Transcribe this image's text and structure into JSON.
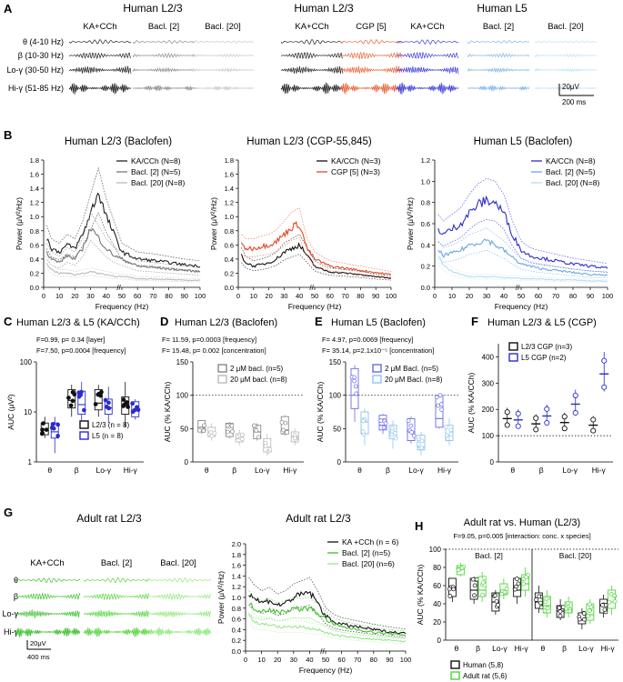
{
  "panels": {
    "A": "A",
    "B": "B",
    "C": "C",
    "D": "D",
    "E": "E",
    "F": "F",
    "G": "G",
    "H": "H"
  },
  "panel_a": {
    "groups": [
      {
        "title": "Human L2/3",
        "conditions": [
          "KA+CCh",
          "Bacl. [2]",
          "Bacl. [20]"
        ],
        "colors": [
          "#222222",
          "#8a8a8a",
          "#c8c8c8"
        ]
      },
      {
        "title": "Human L2/3",
        "conditions": [
          "KA+CCh",
          "CGP [5]"
        ],
        "colors": [
          "#222222",
          "#e8623a"
        ]
      },
      {
        "title": "Human L5",
        "conditions": [
          "KA+CCh",
          "Bacl. [2]",
          "Bacl. [20]"
        ],
        "colors": [
          "#3b3bd9",
          "#7fb4e8",
          "#bfe2f3"
        ]
      }
    ],
    "bands": [
      "θ (4-10 Hz)",
      "β (10-30 Hz)",
      "Lo-γ (30-50 Hz)",
      "Hi-γ (51-85 Hz)"
    ],
    "scale_v": "20μV",
    "scale_t": "200 ms"
  },
  "panel_b": {
    "xlabel": "Frequency (Hz)",
    "ylabel": "Power (μV²/Hz)",
    "charts": [
      {
        "title": "Human L2/3 (Baclofen)",
        "legend": [
          "KA/CCh (N=8)",
          "Bacl. [2]   (N=5)",
          "Bacl. [20]  (N=8)"
        ],
        "yticks": [
          "0.0",
          "0.2",
          "0.4",
          "0.6",
          "0.8",
          "1.0",
          "1.2",
          "1.4",
          "1.6",
          "1.8"
        ],
        "xticks": [
          "0",
          "10",
          "20",
          "30",
          "40",
          "50",
          "60",
          "70",
          "80",
          "90",
          "100"
        ]
      },
      {
        "title": "Human L2/3 (CGP-55,845)",
        "legend": [
          "KA/CCh (N=3)",
          "CGP [5] (N=3)"
        ],
        "yticks": [
          "0.0",
          "0.2",
          "0.4",
          "0.6",
          "0.8",
          "1.0",
          "1.2",
          "1.4",
          "1.6",
          "1.8"
        ],
        "xticks": [
          "0",
          "10",
          "20",
          "30",
          "40",
          "50",
          "60",
          "70",
          "80",
          "90",
          "100"
        ]
      },
      {
        "title": "Human L5 (Baclofen)",
        "legend": [
          "KA/CCh (N=8)",
          "Bacl. [2]   (N=5)",
          "Bacl. [20]  (N=8)"
        ],
        "yticks": [
          "0.0",
          "0.2",
          "0.4",
          "0.6",
          "0.8",
          "1.0",
          "1.2"
        ],
        "xticks": [
          "0",
          "10",
          "20",
          "30",
          "40",
          "50",
          "60",
          "70",
          "80",
          "90",
          "100"
        ]
      }
    ]
  },
  "panel_c": {
    "title": "Human L2/3 & L5 (KA/CCh)",
    "stat1": "F=0.99, p= 0.34 [layer]",
    "stat2": "F=7.50, p=0.0004 [frequency]",
    "ylabel": "AUC (μV²)",
    "yticks": [
      "1",
      "10",
      "100"
    ],
    "categories": [
      "θ",
      "β",
      "Lo-γ",
      "Hi-γ"
    ],
    "legend": [
      "L2/3 (n = 8)",
      "L5 (n = 8)"
    ]
  },
  "panel_d": {
    "title": "Human L2/3 (Baclofen)",
    "stat1": "F= 11.59, p=0.0003 [frequency]",
    "stat2": "F= 15.48, p= 0.002 [concentration]",
    "ylabel": "AUC (% KA/CCh)",
    "yticks": [
      "0",
      "50",
      "100",
      "150"
    ],
    "categories": [
      "θ",
      "β",
      "Lo-γ",
      "Hi-γ"
    ],
    "legend": [
      "2 μM bacl. (n=5)",
      "20 μM bacl. (n=8)"
    ]
  },
  "panel_e": {
    "title": "Human L5 (Baclofen)",
    "stat1": "F= 4.97, p=0.0069 [frequency]",
    "stat2": "F= 35.14, p=2.1x10⁻⁵ [concentration]",
    "ylabel": "AUC (% KA/CCh)",
    "yticks": [
      "0",
      "50",
      "100",
      "150"
    ],
    "categories": [
      "θ",
      "β",
      "Lo-γ",
      "Hi-γ"
    ],
    "legend": [
      "2 μM Bacl. (n=5)",
      "20 μM Bacl. (n=8)"
    ]
  },
  "panel_f": {
    "title": "Human L2/3 & L5 (CGP)",
    "ylabel": "AUC (% KA/CCh)",
    "yticks": [
      "0",
      "100",
      "200",
      "300",
      "400"
    ],
    "categories": [
      "θ",
      "β",
      "Lo-γ",
      "Hi-γ"
    ],
    "legend": [
      "L2/3 CGP (n=3)",
      "L5 CGP (n=2)"
    ]
  },
  "panel_g": {
    "title_left": "Adult rat L2/3",
    "title_right": "Adult rat L2/3",
    "conditions": [
      "KA+CCh",
      "Bacl. [2]",
      "Bacl. [20]"
    ],
    "bands": [
      "θ",
      "β",
      "Lo-γ",
      "Hi-γ"
    ],
    "scale_v": "20μV",
    "scale_t": "400 ms",
    "ylabel": "Power (μV²/Hz)",
    "xlabel": "Frequency (Hz)",
    "yticks": [
      "0.0",
      "0.2",
      "0.4",
      "0.6",
      "0.8",
      "1.0",
      "1.2",
      "1.4",
      "1.6",
      "1.8",
      "2.0"
    ],
    "xticks": [
      "0",
      "10",
      "20",
      "30",
      "40",
      "50",
      "60",
      "70",
      "80",
      "90",
      "100"
    ],
    "legend": [
      "KA +CCh (n = 6)",
      "Bacl. [2] (n=5)",
      "Bacl. [20] (n=6)"
    ]
  },
  "panel_h": {
    "title": "Adult rat vs. Human (L2/3)",
    "stat": "F=9.05, p=0.005 [interaction: conc. x species]",
    "sub_left": "Bacl. [2]",
    "sub_right": "Bacl. [20]",
    "ylabel": "AUC (% KA/CCh)",
    "yticks": [
      "0",
      "20",
      "40",
      "60",
      "80",
      "100"
    ],
    "categories": [
      "θ",
      "β",
      "Lo-γ",
      "Hi-γ",
      "θ",
      "β",
      "Lo-γ",
      "Hi-γ"
    ],
    "legend": [
      "Human (5,8)",
      "Adult rat (5,6)"
    ]
  },
  "chart_data": [
    {
      "type": "line",
      "title": "Human L2/3 (Baclofen)",
      "xlabel": "Frequency (Hz)",
      "ylabel": "Power (μV²/Hz)",
      "xlim": [
        0,
        100
      ],
      "ylim": [
        0,
        1.8
      ],
      "x": [
        2,
        5,
        10,
        15,
        20,
        25,
        30,
        35,
        40,
        45,
        50,
        55,
        60,
        70,
        80,
        90,
        100
      ],
      "series": [
        {
          "name": "KA/CCh (N=8)",
          "values": [
            0.7,
            0.55,
            0.5,
            0.6,
            0.55,
            0.75,
            1.05,
            1.35,
            1.0,
            0.75,
            0.5,
            0.45,
            0.4,
            0.38,
            0.35,
            0.32,
            0.3
          ]
        },
        {
          "name": "Bacl. [2] (N=5)",
          "values": [
            0.5,
            0.4,
            0.35,
            0.45,
            0.4,
            0.55,
            0.85,
            0.7,
            0.55,
            0.45,
            0.4,
            0.35,
            0.3,
            0.28,
            0.26,
            0.24,
            0.22
          ]
        },
        {
          "name": "Bacl. [20] (N=8)",
          "values": [
            0.35,
            0.25,
            0.2,
            0.2,
            0.18,
            0.2,
            0.22,
            0.2,
            0.18,
            0.16,
            0.15,
            0.14,
            0.12,
            0.12,
            0.11,
            0.1,
            0.1
          ]
        }
      ]
    },
    {
      "type": "line",
      "title": "Human L2/3 (CGP-55,845)",
      "xlabel": "Frequency (Hz)",
      "ylabel": "Power (μV²/Hz)",
      "xlim": [
        0,
        100
      ],
      "ylim": [
        0,
        1.8
      ],
      "x": [
        2,
        5,
        10,
        15,
        20,
        25,
        30,
        35,
        40,
        45,
        50,
        55,
        60,
        70,
        80,
        90,
        100
      ],
      "series": [
        {
          "name": "KA/CCh (N=3)",
          "values": [
            0.45,
            0.35,
            0.3,
            0.32,
            0.35,
            0.4,
            0.5,
            0.55,
            0.6,
            0.45,
            0.3,
            0.25,
            0.22,
            0.2,
            0.18,
            0.15,
            0.13
          ]
        },
        {
          "name": "CGP [5] (N=3)",
          "values": [
            0.6,
            0.55,
            0.55,
            0.58,
            0.6,
            0.65,
            0.75,
            0.85,
            0.9,
            0.55,
            0.4,
            0.35,
            0.3,
            0.27,
            0.24,
            0.21,
            0.18
          ]
        }
      ]
    },
    {
      "type": "line",
      "title": "Human L5 (Baclofen)",
      "xlabel": "Frequency (Hz)",
      "ylabel": "Power (μV²/Hz)",
      "xlim": [
        0,
        100
      ],
      "ylim": [
        0,
        1.2
      ],
      "x": [
        2,
        5,
        10,
        15,
        20,
        25,
        30,
        35,
        40,
        45,
        50,
        55,
        60,
        70,
        80,
        90,
        100
      ],
      "series": [
        {
          "name": "KA/CCh (N=8)",
          "values": [
            0.55,
            0.5,
            0.55,
            0.6,
            0.7,
            0.78,
            0.82,
            0.8,
            0.7,
            0.5,
            0.35,
            0.3,
            0.28,
            0.25,
            0.22,
            0.2,
            0.18
          ]
        },
        {
          "name": "Bacl. [2] (N=5)",
          "values": [
            0.35,
            0.3,
            0.32,
            0.35,
            0.4,
            0.42,
            0.45,
            0.4,
            0.35,
            0.28,
            0.22,
            0.2,
            0.18,
            0.16,
            0.14,
            0.12,
            0.12
          ]
        },
        {
          "name": "Bacl. [20] (N=8)",
          "values": [
            0.3,
            0.2,
            0.15,
            0.12,
            0.1,
            0.1,
            0.1,
            0.1,
            0.09,
            0.09,
            0.08,
            0.08,
            0.08,
            0.07,
            0.07,
            0.06,
            0.06
          ]
        }
      ]
    },
    {
      "type": "line",
      "title": "Adult rat L2/3",
      "xlabel": "Frequency (Hz)",
      "ylabel": "Power (μV²/Hz)",
      "xlim": [
        0,
        100
      ],
      "ylim": [
        0,
        2.0
      ],
      "x": [
        2,
        5,
        10,
        15,
        20,
        25,
        30,
        35,
        40,
        45,
        50,
        55,
        60,
        70,
        80,
        90,
        100
      ],
      "series": [
        {
          "name": "KA +CCh (n = 6)",
          "values": [
            1.1,
            1.0,
            0.9,
            0.95,
            0.85,
            0.9,
            1.0,
            1.05,
            1.1,
            0.9,
            0.65,
            0.55,
            0.5,
            0.45,
            0.4,
            0.36,
            0.33
          ]
        },
        {
          "name": "Bacl. [2] (n=5)",
          "values": [
            0.9,
            0.8,
            0.75,
            0.78,
            0.72,
            0.75,
            0.8,
            0.78,
            0.8,
            0.7,
            0.6,
            0.5,
            0.45,
            0.4,
            0.35,
            0.32,
            0.3
          ]
        },
        {
          "name": "Bacl. [20] (n=6)",
          "values": [
            0.7,
            0.55,
            0.5,
            0.5,
            0.45,
            0.45,
            0.45,
            0.45,
            0.42,
            0.4,
            0.35,
            0.3,
            0.28,
            0.25,
            0.22,
            0.2,
            0.18
          ]
        }
      ]
    },
    {
      "type": "box",
      "title": "Human L2/3 & L5 (KA/CCh)",
      "ylabel": "AUC (μV²)",
      "yscale": "log",
      "ylim": [
        1,
        100
      ],
      "categories": [
        "θ",
        "β",
        "Lo-γ",
        "Hi-γ"
      ],
      "series": [
        {
          "name": "L2/3 (n = 8)",
          "median": [
            4.5,
            17,
            15,
            14
          ],
          "q1": [
            3.5,
            12,
            11,
            9
          ],
          "q3": [
            6,
            28,
            28,
            20
          ],
          "min": [
            3,
            8,
            8,
            5
          ],
          "max": [
            8,
            35,
            35,
            40
          ]
        },
        {
          "name": "L5 (n = 8)",
          "median": [
            4,
            14,
            12,
            11
          ],
          "q1": [
            3,
            9,
            9,
            8
          ],
          "q3": [
            6,
            26,
            18,
            16
          ],
          "min": [
            1.5,
            5,
            6,
            7
          ],
          "max": [
            8,
            40,
            32,
            18
          ]
        }
      ]
    },
    {
      "type": "box",
      "title": "Human L2/3 (Baclofen)",
      "ylabel": "AUC (% KA/CCh)",
      "ylim": [
        0,
        150
      ],
      "reference_line": 100,
      "categories": [
        "θ",
        "β",
        "Lo-γ",
        "Hi-γ"
      ],
      "series": [
        {
          "name": "2 μM bacl. (n=5)",
          "median": [
            52,
            45,
            45,
            48
          ],
          "q1": [
            45,
            38,
            35,
            42
          ],
          "q3": [
            62,
            58,
            55,
            68
          ],
          "min": [
            42,
            35,
            32,
            40
          ],
          "max": [
            62,
            60,
            58,
            70
          ]
        },
        {
          "name": "20 μM bacl. (n=8)",
          "median": [
            45,
            35,
            22,
            38
          ],
          "q1": [
            38,
            30,
            15,
            30
          ],
          "q3": [
            52,
            42,
            35,
            45
          ],
          "min": [
            32,
            25,
            10,
            25
          ],
          "max": [
            58,
            48,
            42,
            50
          ]
        }
      ]
    },
    {
      "type": "box",
      "title": "Human L5 (Baclofen)",
      "ylabel": "AUC (% KA/CCh)",
      "ylim": [
        0,
        150
      ],
      "reference_line": 100,
      "categories": [
        "θ",
        "β",
        "Lo-γ",
        "Hi-γ"
      ],
      "series": [
        {
          "name": "2 μM Bacl. (n=5)",
          "median": [
            100,
            55,
            45,
            65
          ],
          "q1": [
            80,
            48,
            32,
            52
          ],
          "q3": [
            140,
            70,
            65,
            100
          ],
          "min": [
            60,
            42,
            28,
            50
          ],
          "max": [
            145,
            72,
            68,
            100
          ]
        },
        {
          "name": "20 μM Bacl. (n=8)",
          "median": [
            60,
            45,
            22,
            40
          ],
          "q1": [
            42,
            35,
            18,
            32
          ],
          "q3": [
            75,
            55,
            40,
            55
          ],
          "min": [
            25,
            20,
            10,
            25
          ],
          "max": [
            80,
            62,
            45,
            65
          ]
        }
      ]
    },
    {
      "type": "scatter",
      "title": "Human L2/3 & L5 (CGP)",
      "ylabel": "AUC (% KA/CCh)",
      "ylim": [
        0,
        450
      ],
      "reference_line": 100,
      "categories": [
        "θ",
        "β",
        "Lo-γ",
        "Hi-γ"
      ],
      "series": [
        {
          "name": "L2/3 CGP (n=3)",
          "mean": [
            165,
            145,
            150,
            140
          ]
        },
        {
          "name": "L5 CGP (n=2)",
          "mean": [
            160,
            175,
            220,
            335
          ]
        }
      ]
    },
    {
      "type": "box",
      "title": "Adult rat vs. Human (L2/3)",
      "ylabel": "AUC (% KA/CCh)",
      "ylim": [
        0,
        100
      ],
      "categories": [
        "θ [2]",
        "β [2]",
        "Lo-γ [2]",
        "Hi-γ [2]",
        "θ [20]",
        "β [20]",
        "Lo-γ [20]",
        "Hi-γ [20]"
      ],
      "series": [
        {
          "name": "Human (5,8)",
          "median": [
            58,
            55,
            42,
            55,
            42,
            32,
            22,
            38
          ],
          "q1": [
            48,
            45,
            32,
            48,
            35,
            25,
            18,
            30
          ],
          "q3": [
            68,
            68,
            52,
            68,
            52,
            38,
            30,
            45
          ],
          "min": [
            42,
            40,
            28,
            40,
            30,
            22,
            12,
            25
          ],
          "max": [
            68,
            70,
            55,
            70,
            60,
            45,
            35,
            50
          ]
        },
        {
          "name": "Adult rat (5,6)",
          "median": [
            78,
            55,
            55,
            62,
            38,
            35,
            28,
            42
          ],
          "q1": [
            72,
            48,
            50,
            55,
            30,
            30,
            22,
            35
          ],
          "q3": [
            82,
            70,
            62,
            72,
            48,
            42,
            40,
            55
          ],
          "min": [
            70,
            42,
            45,
            48,
            25,
            25,
            18,
            28
          ],
          "max": [
            85,
            75,
            68,
            80,
            55,
            48,
            45,
            60
          ]
        }
      ]
    }
  ]
}
